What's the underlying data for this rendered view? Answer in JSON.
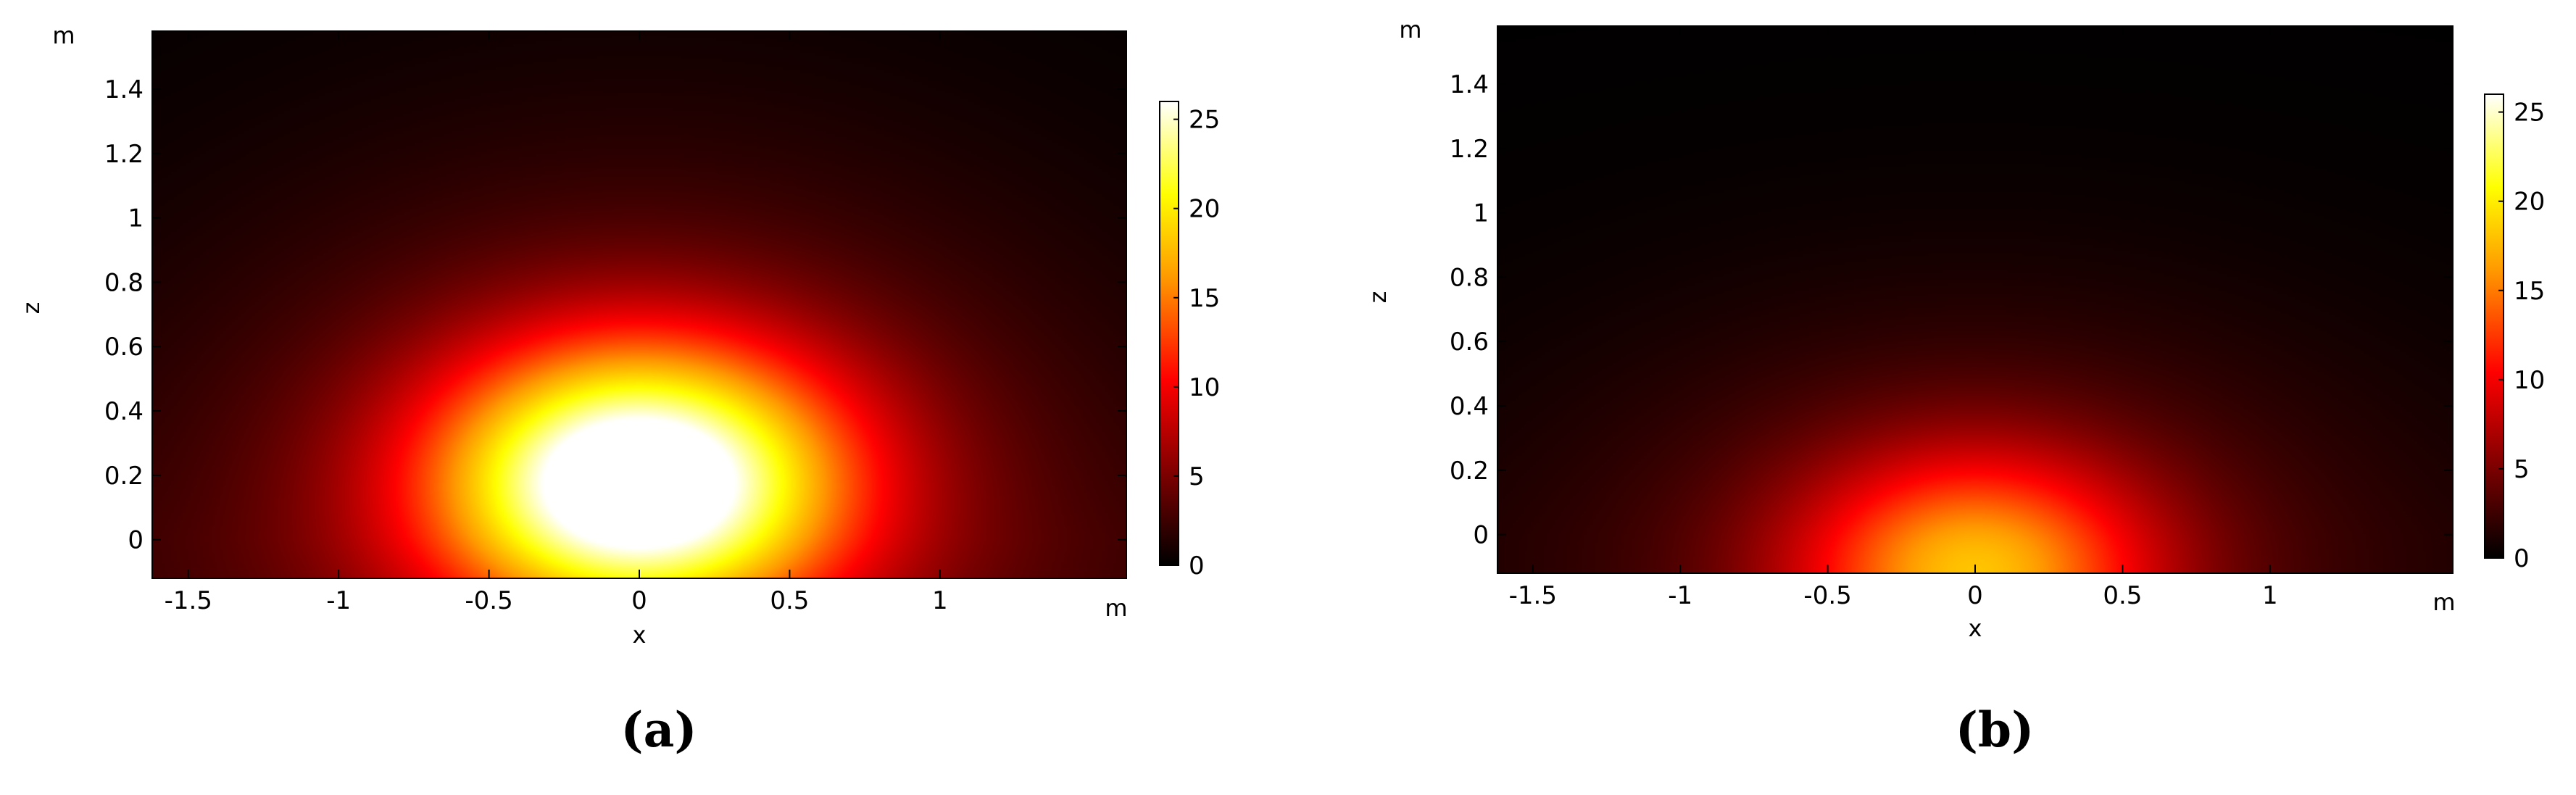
{
  "chart_data": [
    {
      "type": "heatmap",
      "caption": "(a)",
      "xlabel": "x",
      "ylabel": "z",
      "x_unit": "m",
      "y_unit": "m",
      "xlim": [
        -1.62,
        1.62
      ],
      "ylim": [
        -0.12,
        1.58
      ],
      "x_ticks": [
        -1.5,
        -1,
        -0.5,
        0,
        0.5,
        1
      ],
      "x_tick_labels": [
        "-1.5",
        "-1",
        "-0.5",
        "0",
        "0.5",
        "1"
      ],
      "y_ticks": [
        0,
        0.2,
        0.4,
        0.6,
        0.8,
        1,
        1.2,
        1.4
      ],
      "y_tick_labels": [
        "0",
        "0.2",
        "0.4",
        "0.6",
        "0.8",
        "1",
        "1.2",
        "1.4"
      ],
      "colorbar": {
        "min": 0,
        "max": 26,
        "ticks": [
          0,
          5,
          10,
          15,
          20,
          25
        ],
        "tick_labels": [
          "0",
          "5",
          "10",
          "15",
          "20",
          "25"
        ]
      },
      "field": {
        "description": "single hot lobe centred at x=0, bottom; strong spread",
        "peak": 26,
        "center_x": 0,
        "center_z": 0.18,
        "sigma_x": 0.48,
        "sigma_z": 0.3,
        "background": 1.2
      }
    },
    {
      "type": "heatmap",
      "caption": "(b)",
      "xlabel": "x",
      "ylabel": "z",
      "x_unit": "m",
      "y_unit": "m",
      "xlim": [
        -1.62,
        1.62
      ],
      "ylim": [
        -0.12,
        1.58
      ],
      "x_ticks": [
        -1.5,
        -1,
        -0.5,
        0,
        0.5,
        1
      ],
      "x_tick_labels": [
        "-1.5",
        "-1",
        "-0.5",
        "0",
        "0.5",
        "1"
      ],
      "y_ticks": [
        0,
        0.2,
        0.4,
        0.6,
        0.8,
        1,
        1.2,
        1.4
      ],
      "y_tick_labels": [
        "0",
        "0.2",
        "0.4",
        "0.6",
        "0.8",
        "1",
        "1.2",
        "1.4"
      ],
      "colorbar": {
        "min": 0,
        "max": 26,
        "ticks": [
          0,
          5,
          10,
          15,
          20,
          25
        ],
        "tick_labels": [
          "0",
          "5",
          "10",
          "15",
          "20",
          "25"
        ]
      },
      "field": {
        "description": "weaker lobe concentrated at bottom centre",
        "peak": 14,
        "center_x": 0,
        "center_z": -0.12,
        "sigma_x": 0.42,
        "sigma_z": 0.26,
        "background": 0.6
      }
    }
  ]
}
